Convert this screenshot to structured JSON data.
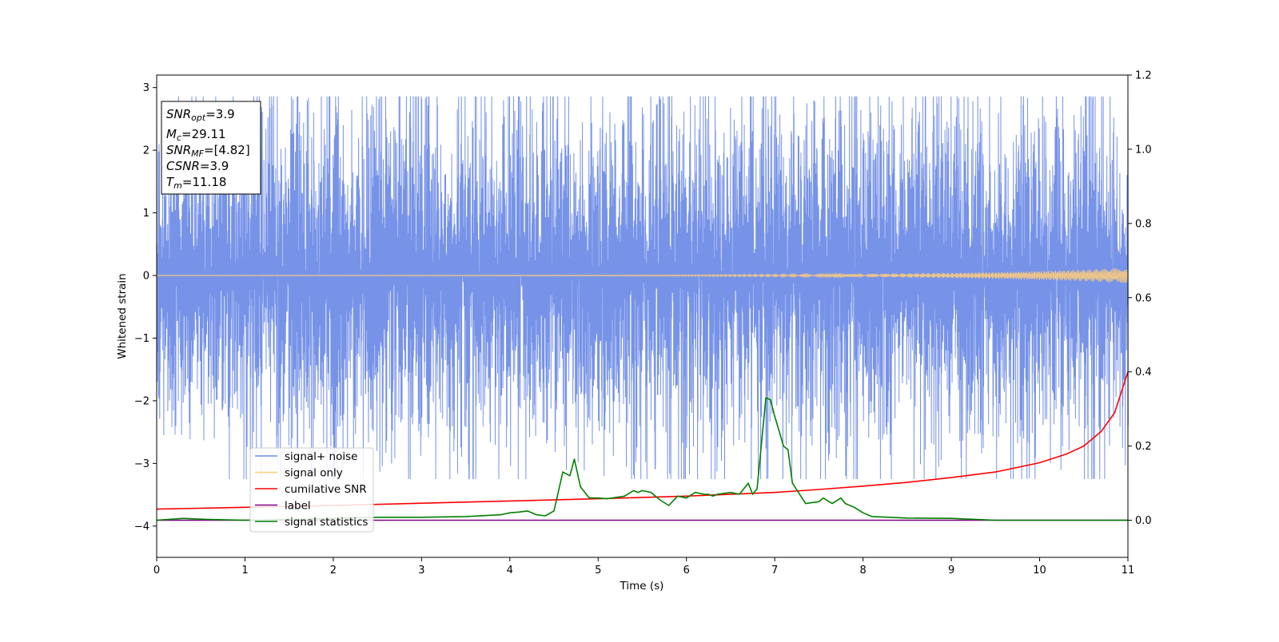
{
  "chart_data": {
    "type": "line",
    "xlabel": "Time (s)",
    "ylabel": "Whitened strain",
    "xlim": [
      0,
      11
    ],
    "ylim_left": [
      -4.5,
      3.2
    ],
    "ylim_right": [
      -0.1,
      1.2
    ],
    "xticks": [
      "0",
      "1",
      "2",
      "3",
      "4",
      "5",
      "6",
      "7",
      "8",
      "9",
      "10",
      "11"
    ],
    "yticks_left": [
      "−4",
      "−3",
      "−2",
      "−1",
      "0",
      "1",
      "2",
      "3"
    ],
    "yticks_right": [
      "0.0",
      "0.2",
      "0.4",
      "0.6",
      "0.8",
      "1.0",
      "1.2"
    ],
    "grid": false,
    "legend_position": "lower-left",
    "info_box": {
      "snr_opt_label": "SNR",
      "snr_opt_sub": "opt",
      "snr_opt_value": "=3.9",
      "mc_label": "M",
      "mc_sub": "c",
      "mc_value": "=29.11",
      "snr_mf_label": "SNR",
      "snr_mf_sub": "MF",
      "snr_mf_value": "=[4.82]",
      "csnr_label": "CSNR",
      "csnr_value": "=3.9",
      "tm_label": "T",
      "tm_sub": "m",
      "tm_value": "=11.18"
    },
    "series": [
      {
        "name": "signal+ noise",
        "color": "#6b8ae6",
        "axis": "left",
        "kind": "noise",
        "x_range": [
          0,
          11
        ],
        "mean": 0,
        "typical_envelope": [
          -2.0,
          2.0
        ],
        "observed_extremes": {
          "max": 2.86,
          "min": -3.25
        }
      },
      {
        "name": "signal only",
        "color": "#ffcc7a",
        "axis": "left",
        "kind": "chirp",
        "x_range": [
          0,
          11
        ],
        "amplitude_start": 0.005,
        "amplitude_end": 0.12
      },
      {
        "name": "cumilative SNR",
        "color": "#ff0000",
        "axis": "right",
        "x": [
          0,
          1,
          2,
          3,
          4,
          5,
          6,
          7,
          7.5,
          8,
          8.5,
          9,
          9.5,
          10,
          10.3,
          10.5,
          10.7,
          10.85,
          11
        ],
        "y": [
          0.03,
          0.035,
          0.04,
          0.046,
          0.052,
          0.058,
          0.065,
          0.075,
          0.083,
          0.092,
          0.102,
          0.115,
          0.13,
          0.155,
          0.178,
          0.2,
          0.24,
          0.29,
          0.4
        ]
      },
      {
        "name": "label",
        "color": "#800080",
        "axis": "right",
        "x": [
          0,
          11
        ],
        "y": [
          0,
          0
        ]
      },
      {
        "name": "signal statistics",
        "color": "#008000",
        "axis": "right",
        "x": [
          0,
          0.3,
          0.6,
          1.0,
          2.0,
          2.5,
          3.0,
          3.5,
          3.9,
          4.0,
          4.1,
          4.2,
          4.3,
          4.4,
          4.5,
          4.6,
          4.68,
          4.73,
          4.8,
          4.9,
          5.0,
          5.1,
          5.3,
          5.4,
          5.45,
          5.5,
          5.6,
          5.7,
          5.8,
          5.9,
          6.0,
          6.1,
          6.2,
          6.25,
          6.3,
          6.35,
          6.5,
          6.6,
          6.7,
          6.75,
          6.8,
          6.9,
          6.95,
          7.0,
          7.1,
          7.15,
          7.2,
          7.35,
          7.5,
          7.55,
          7.65,
          7.75,
          7.8,
          7.9,
          8.0,
          8.1,
          8.3,
          8.5,
          9.0,
          9.5,
          10.0,
          10.5,
          11.0
        ],
        "y": [
          0.0,
          0.005,
          0.002,
          0.0,
          0.005,
          0.008,
          0.008,
          0.01,
          0.015,
          0.02,
          0.022,
          0.025,
          0.015,
          0.012,
          0.025,
          0.13,
          0.12,
          0.165,
          0.09,
          0.06,
          0.06,
          0.058,
          0.065,
          0.08,
          0.075,
          0.08,
          0.075,
          0.055,
          0.04,
          0.065,
          0.06,
          0.075,
          0.07,
          0.07,
          0.065,
          0.07,
          0.075,
          0.07,
          0.1,
          0.07,
          0.085,
          0.33,
          0.325,
          0.28,
          0.2,
          0.19,
          0.1,
          0.045,
          0.05,
          0.06,
          0.045,
          0.06,
          0.045,
          0.035,
          0.02,
          0.01,
          0.008,
          0.006,
          0.005,
          0.0,
          0.0,
          0.0,
          0.0
        ]
      }
    ]
  }
}
